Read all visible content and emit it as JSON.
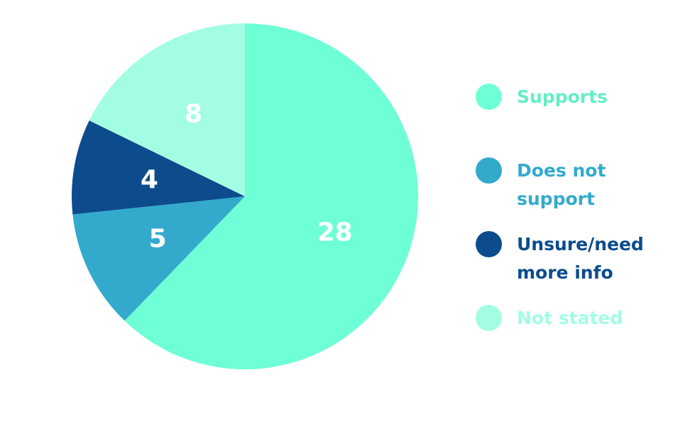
{
  "chart_data": {
    "type": "pie",
    "title": "",
    "slices": [
      {
        "name": "Supports",
        "value": 28,
        "color": "#6effd6",
        "label_color": "#63efc4"
      },
      {
        "name": "Does not support",
        "value": 5,
        "color": "#33aacc",
        "label_color": "#33aacc"
      },
      {
        "name": "Unsure/need more info",
        "value": 4,
        "color": "#0c4c8c",
        "label_color": "#0c4c8c"
      },
      {
        "name": "Not stated",
        "value": 8,
        "color": "#a3fde3",
        "label_color": "#a3fde3"
      }
    ],
    "start_angle_deg": 0,
    "direction": "clockwise",
    "legend_position": "right"
  },
  "legend": {
    "items": [
      {
        "label_line1": "Supports",
        "label_line2": ""
      },
      {
        "label_line1": "Does not",
        "label_line2": "support"
      },
      {
        "label_line1": "Unsure/need",
        "label_line2": "more info"
      },
      {
        "label_line1": "Not stated",
        "label_line2": ""
      }
    ]
  }
}
